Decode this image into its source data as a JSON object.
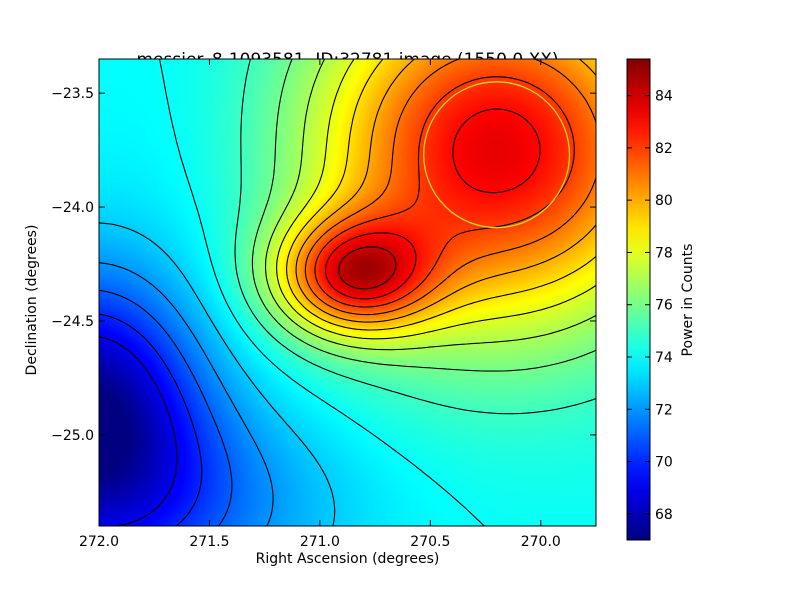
{
  "chart_data": {
    "type": "heatmap",
    "title": "messier_8-1093581, ID:32781 image (1550.0,XX)",
    "xlabel": "Right Ascension (degrees)",
    "ylabel": "Declination (degrees)",
    "colorbar_label": "Power in Counts",
    "colormap": "jet",
    "xlim": [
      272.0,
      269.75
    ],
    "ylim": [
      -25.4,
      -23.35
    ],
    "x_ticks": [
      272.0,
      271.5,
      271.0,
      270.5,
      270.0
    ],
    "x_tick_labels": [
      "272.0",
      "271.5",
      "271.0",
      "270.5",
      "270.0"
    ],
    "y_ticks": [
      -23.5,
      -24.0,
      -24.5,
      -25.0
    ],
    "y_tick_labels": [
      "−23.5",
      "−24.0",
      "−24.5",
      "−25.0"
    ],
    "color_range": [
      67.0,
      85.4
    ],
    "colorbar_ticks": [
      68,
      70,
      72,
      74,
      76,
      78,
      80,
      82,
      84
    ],
    "colorbar_tick_labels": [
      "68",
      "70",
      "72",
      "74",
      "76",
      "78",
      "80",
      "82",
      "84"
    ],
    "contour_levels": [
      69,
      70,
      71,
      72,
      73,
      74,
      75,
      76,
      77,
      78,
      79,
      80,
      81,
      82,
      83,
      84
    ],
    "field": {
      "base": 74.0,
      "components": [
        {
          "ra": 270.2,
          "dec": -23.75,
          "amp": 9.5,
          "sigma_ra": 0.6,
          "sigma_dec": 0.55
        },
        {
          "ra": 270.85,
          "dec": -24.3,
          "amp": 7.5,
          "sigma_ra": 0.25,
          "sigma_dec": 0.18
        },
        {
          "ra": 272.05,
          "dec": -24.85,
          "amp": -6.0,
          "sigma_ra": 0.35,
          "sigma_dec": 0.4
        },
        {
          "ra": 271.8,
          "dec": -25.3,
          "amp": -3.0,
          "sigma_ra": 0.6,
          "sigma_dec": 0.35
        },
        {
          "ra": 271.5,
          "dec": -23.8,
          "amp": -0.5,
          "sigma_ra": 0.4,
          "sigma_dec": 0.5
        }
      ]
    },
    "circle": {
      "ra": 270.2,
      "dec": -23.77,
      "radius_deg": 0.33,
      "color": "#d4d42a"
    }
  }
}
